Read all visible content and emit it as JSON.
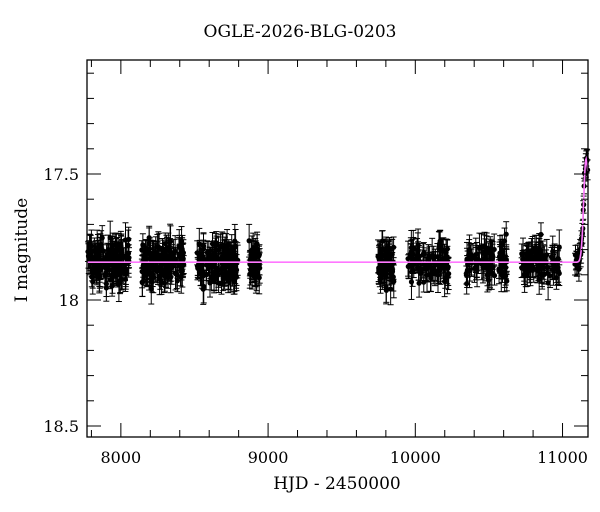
{
  "chart_data": {
    "type": "scatter",
    "title": "OGLE-2026-BLG-0203",
    "xlabel": "HJD - 2450000",
    "ylabel": "I magnitude",
    "xlim": [
      7770,
      11173
    ],
    "ylim": [
      18.55,
      17.05
    ],
    "y_inverted": true,
    "xticks": [
      8000,
      9000,
      10000,
      11000
    ],
    "xtick_labels": [
      "8000",
      "9000",
      "10000",
      "11000"
    ],
    "x_minor_step": 200,
    "yticks": [
      17.5,
      18,
      18.5
    ],
    "ytick_labels": [
      "17.5",
      "18",
      "18.5"
    ],
    "y_minor_step": 0.1,
    "grid": false,
    "legend": null,
    "series": [
      {
        "name": "observations",
        "kind": "points_with_errorbars",
        "color": "#000000",
        "baseline_mag": 17.85,
        "scatter_sigma": 0.04,
        "typical_error": 0.05,
        "seasons": [
          {
            "start": 7775,
            "end": 8060,
            "n": 140
          },
          {
            "start": 8142,
            "end": 8430,
            "n": 140
          },
          {
            "start": 8510,
            "end": 8795,
            "n": 140
          },
          {
            "start": 8870,
            "end": 8945,
            "n": 45
          },
          {
            "start": 9745,
            "end": 9855,
            "n": 70
          },
          {
            "start": 9950,
            "end": 10230,
            "n": 90
          },
          {
            "start": 10345,
            "end": 10630,
            "n": 90
          },
          {
            "start": 10715,
            "end": 10985,
            "n": 90
          }
        ],
        "event_points": {
          "start": 11085,
          "end": 11170,
          "n": 30
        }
      },
      {
        "name": "model",
        "kind": "line",
        "color": "#ff77ff",
        "baseline_mag": 17.85,
        "t0": 11160,
        "peak_mag": 17.44,
        "end_mag": 17.52,
        "tE": 25
      }
    ]
  }
}
